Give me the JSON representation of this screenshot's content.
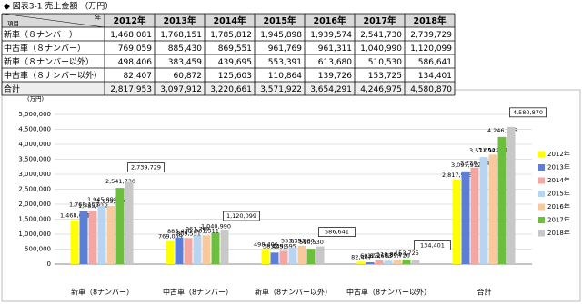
{
  "table": {
    "title": "◆ 図表3-1  売上金額  （万円）",
    "corner_top": "年",
    "corner_bottom": "項目",
    "rows": [
      "新車（８ナンバー）",
      "中古車（８ナンバー）",
      "新車（８ナンバー以外）",
      "中古車（８ナンバー以外）",
      "合計"
    ]
  },
  "chart_data": {
    "type": "bar",
    "y_unit": "(万円)",
    "categories": [
      "新車（8ナンバー）",
      "中古車（8ナンバー）",
      "新車（8ナンバー以外）",
      "中古車（8ナンバー以外）",
      "合計"
    ],
    "ylim": [
      0,
      5000000
    ],
    "yticks": [
      0,
      {
        "value": 500000,
        "label": "500,000"
      },
      {
        "value": 1000000,
        "label": "1,000,000"
      },
      {
        "value": 1500000,
        "label": "1,500,000"
      },
      {
        "value": 2000000,
        "label": "2,000,000"
      },
      {
        "value": 2500000,
        "label": "2,500,000"
      },
      {
        "value": 3000000,
        "label": "3,000,000"
      },
      {
        "value": 3500000,
        "label": "3,500,000"
      },
      {
        "value": 4000000,
        "label": "4,000,000"
      },
      {
        "value": 4500000,
        "label": "4,500,000"
      },
      {
        "value": 5000000,
        "label": "5,000,000"
      }
    ],
    "grid": true,
    "series": [
      {
        "name": "2012年",
        "color": "#ffff00",
        "values": [
          1468081,
          769059,
          498406,
          82407,
          2817953
        ],
        "value_labels": [
          "1,468,081",
          "769,059",
          "498,406",
          "82,407",
          "2,817,953"
        ]
      },
      {
        "name": "2013年",
        "color": "#5b7fd6",
        "values": [
          1768151,
          885430,
          383459,
          60872,
          3097912
        ],
        "value_labels": [
          "1,768,151",
          "885,430",
          "383,459",
          "60,872",
          "3,097,912"
        ]
      },
      {
        "name": "2014年",
        "color": "#f2a7a0",
        "values": [
          1785812,
          869551,
          439695,
          125603,
          3220661
        ],
        "value_labels": [
          "1,785,812",
          "869,551",
          "439,695",
          "125,603",
          "3,220,661"
        ]
      },
      {
        "name": "2015年",
        "color": "#b7d5f0",
        "values": [
          1945898,
          961769,
          553391,
          110864,
          3571922
        ],
        "value_labels": [
          "1,945,898",
          "961,769",
          "553,391",
          "110,864",
          "3,571,922"
        ]
      },
      {
        "name": "2016年",
        "color": "#f8c99c",
        "values": [
          1939574,
          961311,
          613680,
          139726,
          3654291
        ],
        "value_labels": [
          "1,939,574",
          "961,311",
          "613,680",
          "139,726",
          "3,654,291"
        ]
      },
      {
        "name": "2017年",
        "color": "#6cbf3c",
        "values": [
          2541730,
          1040990,
          510530,
          153725,
          4246975
        ],
        "value_labels": [
          "2,541,730",
          "1,040,990",
          "510,530",
          "153,725",
          "4,246,975"
        ]
      },
      {
        "name": "2018年",
        "color": "#c8c8c8",
        "values": [
          2739729,
          1120099,
          586641,
          134401,
          4580870
        ],
        "value_labels": [
          "2,739,729",
          "1,120,099",
          "586,641",
          "134,401",
          "4,580,870"
        ]
      }
    ]
  }
}
